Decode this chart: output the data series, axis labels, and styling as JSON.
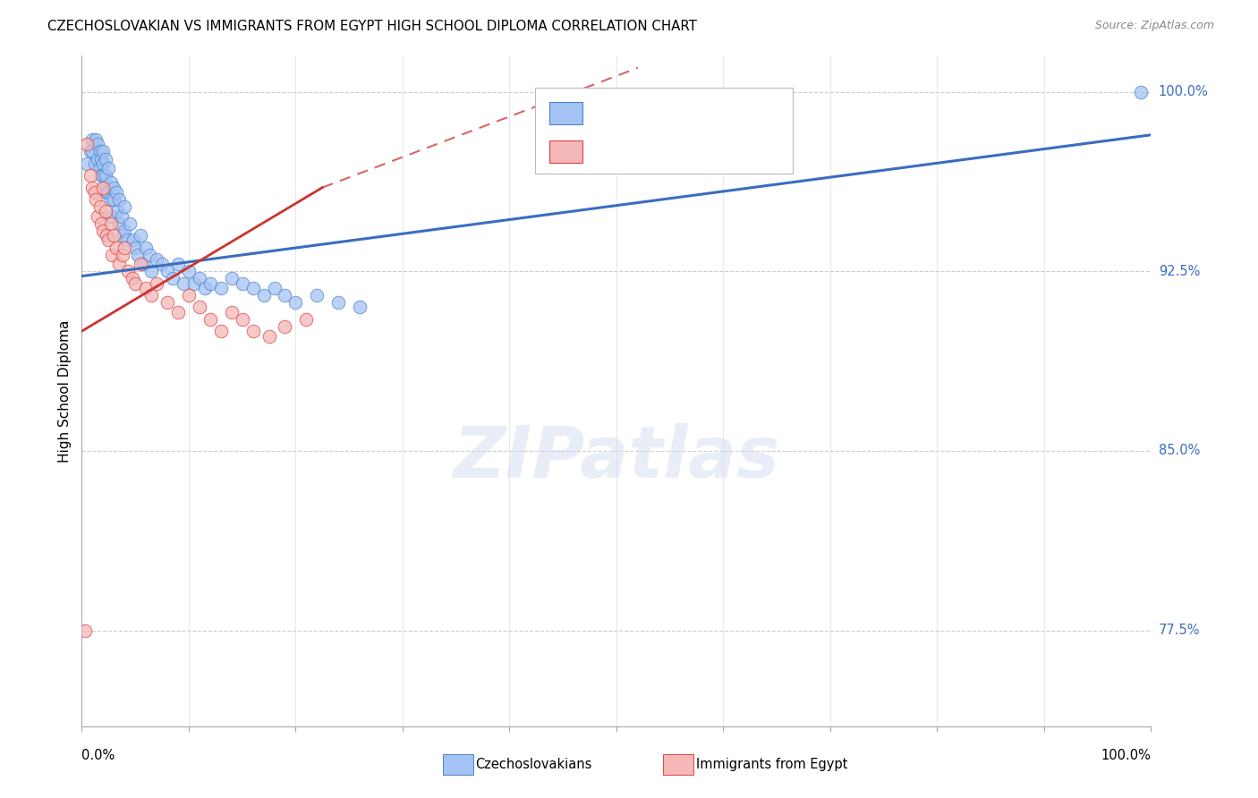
{
  "title": "CZECHOSLOVAKIAN VS IMMIGRANTS FROM EGYPT HIGH SCHOOL DIPLOMA CORRELATION CHART",
  "source": "Source: ZipAtlas.com",
  "ylabel": "High School Diploma",
  "ylabel_right_ticks": [
    "100.0%",
    "92.5%",
    "85.0%",
    "77.5%"
  ],
  "ylabel_right_vals": [
    1.0,
    0.925,
    0.85,
    0.775
  ],
  "blue_color": "#a4c2f4",
  "pink_color": "#f4b8b8",
  "blue_edge_color": "#4a86c8",
  "pink_edge_color": "#d44",
  "blue_line_color": "#3a6dbf",
  "pink_line_color": "#cc3333",
  "watermark": "ZIPatlas",
  "blue_x": [
    0.005,
    0.008,
    0.01,
    0.01,
    0.012,
    0.013,
    0.015,
    0.015,
    0.017,
    0.017,
    0.018,
    0.018,
    0.02,
    0.02,
    0.02,
    0.021,
    0.022,
    0.022,
    0.023,
    0.025,
    0.025,
    0.027,
    0.027,
    0.028,
    0.03,
    0.03,
    0.032,
    0.033,
    0.035,
    0.035,
    0.037,
    0.038,
    0.04,
    0.04,
    0.042,
    0.045,
    0.048,
    0.05,
    0.052,
    0.055,
    0.057,
    0.06,
    0.063,
    0.065,
    0.07,
    0.075,
    0.08,
    0.085,
    0.09,
    0.095,
    0.1,
    0.105,
    0.11,
    0.115,
    0.12,
    0.13,
    0.14,
    0.15,
    0.16,
    0.17,
    0.18,
    0.19,
    0.2,
    0.22,
    0.24,
    0.26,
    0.99
  ],
  "blue_y": [
    0.97,
    0.975,
    0.98,
    0.975,
    0.97,
    0.98,
    0.978,
    0.972,
    0.975,
    0.968,
    0.965,
    0.972,
    0.97,
    0.975,
    0.965,
    0.96,
    0.972,
    0.965,
    0.958,
    0.968,
    0.958,
    0.955,
    0.962,
    0.948,
    0.96,
    0.955,
    0.958,
    0.95,
    0.955,
    0.945,
    0.948,
    0.94,
    0.952,
    0.942,
    0.938,
    0.945,
    0.938,
    0.935,
    0.932,
    0.94,
    0.928,
    0.935,
    0.932,
    0.925,
    0.93,
    0.928,
    0.925,
    0.922,
    0.928,
    0.92,
    0.925,
    0.92,
    0.922,
    0.918,
    0.92,
    0.918,
    0.922,
    0.92,
    0.918,
    0.915,
    0.918,
    0.915,
    0.912,
    0.915,
    0.912,
    0.91,
    1.0
  ],
  "pink_x": [
    0.003,
    0.008,
    0.01,
    0.012,
    0.013,
    0.015,
    0.017,
    0.018,
    0.02,
    0.02,
    0.022,
    0.023,
    0.025,
    0.027,
    0.028,
    0.03,
    0.032,
    0.035,
    0.038,
    0.04,
    0.043,
    0.047,
    0.05,
    0.055,
    0.06,
    0.065,
    0.07,
    0.08,
    0.09,
    0.1,
    0.11,
    0.12,
    0.13,
    0.14,
    0.15,
    0.16,
    0.175,
    0.19,
    0.21,
    0.005
  ],
  "pink_y": [
    0.775,
    0.965,
    0.96,
    0.958,
    0.955,
    0.948,
    0.952,
    0.945,
    0.942,
    0.96,
    0.95,
    0.94,
    0.938,
    0.945,
    0.932,
    0.94,
    0.935,
    0.928,
    0.932,
    0.935,
    0.925,
    0.922,
    0.92,
    0.928,
    0.918,
    0.915,
    0.92,
    0.912,
    0.908,
    0.915,
    0.91,
    0.905,
    0.9,
    0.908,
    0.905,
    0.9,
    0.898,
    0.902,
    0.905,
    0.978
  ],
  "xlim": [
    0.0,
    1.0
  ],
  "ylim": [
    0.735,
    1.015
  ],
  "blue_trend": [
    0.0,
    1.0,
    0.923,
    0.982
  ],
  "pink_solid": [
    0.0,
    0.225,
    0.9,
    0.96
  ],
  "pink_dash": [
    0.225,
    0.52,
    0.96,
    1.01
  ]
}
